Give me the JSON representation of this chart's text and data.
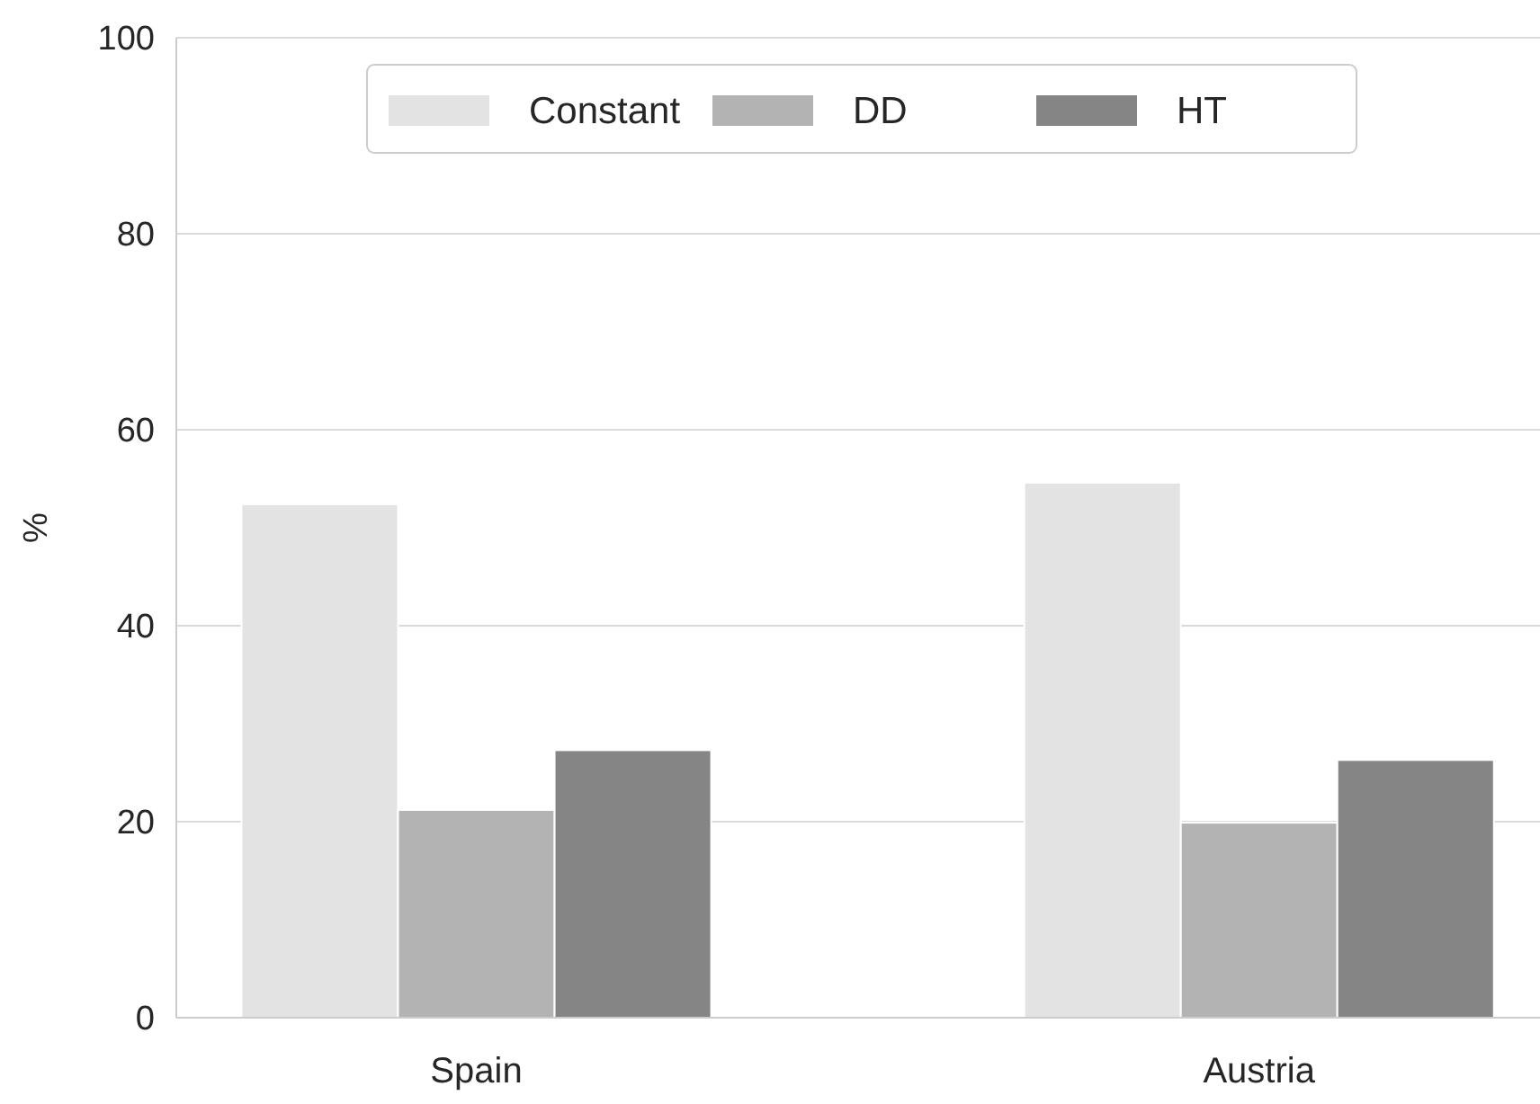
{
  "chart_data": {
    "type": "bar",
    "ylabel": "%",
    "categories": [
      "Spain",
      "Austria"
    ],
    "series": [
      {
        "name": "Constant",
        "color": "#e3e3e3",
        "values": [
          52.4,
          54.6
        ]
      },
      {
        "name": "DD",
        "color": "#b3b3b3",
        "values": [
          21.2,
          19.9
        ]
      },
      {
        "name": "HT",
        "color": "#858585",
        "values": [
          27.3,
          26.3
        ]
      }
    ],
    "ylim": [
      0,
      100
    ],
    "yticks": [
      0,
      20,
      40,
      60,
      80,
      100
    ],
    "grid": "y",
    "legend": "top"
  }
}
